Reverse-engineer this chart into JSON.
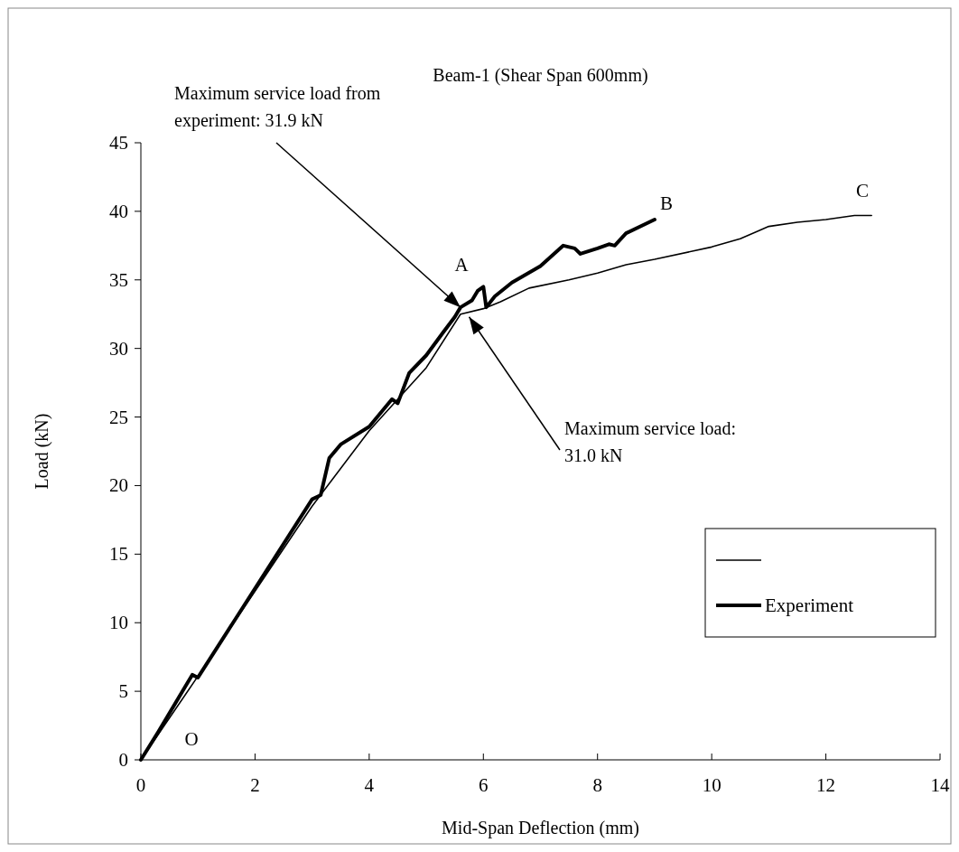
{
  "chart_data": {
    "type": "line",
    "title": "Beam-1 (Shear Span 600mm)",
    "xlabel": "Mid-Span Deflection (mm)",
    "ylabel": "Load (kN)",
    "xlim": [
      0,
      14
    ],
    "xticks": [
      0,
      2,
      4,
      6,
      8,
      10,
      12,
      14
    ],
    "ylim": [
      0,
      45
    ],
    "yticks": [
      0,
      5,
      10,
      15,
      20,
      25,
      30,
      35,
      40,
      45
    ],
    "grid": false,
    "legend": "bottom right",
    "marker": "none",
    "line_style": "solid",
    "series": [
      {
        "color": "#000000",
        "x": [
          0,
          1,
          2,
          3,
          4,
          5,
          5.6,
          6,
          6.3,
          6.8,
          7.5,
          8,
          8.5,
          9,
          10,
          10.5,
          11,
          11.5,
          12,
          12.5,
          12.8
        ],
        "values": [
          0,
          6.1,
          12.3,
          18.5,
          24,
          28.6,
          32.5,
          32.9,
          33.4,
          34.4,
          35,
          35.5,
          36.1,
          36.5,
          37.4,
          38,
          38.9,
          39.2,
          39.4,
          39.7,
          39.7
        ]
      },
      {
        "name": "Experiment",
        "color": "#000000",
        "x": [
          0,
          0.3,
          0.9,
          1,
          2,
          3,
          3.15,
          3.3,
          3.5,
          4,
          4.4,
          4.5,
          4.7,
          5,
          5.3,
          5.5,
          5.6,
          5.8,
          5.9,
          6,
          6.05,
          6.2,
          6.5,
          7,
          7.4,
          7.6,
          7.7,
          8,
          8.2,
          8.3,
          8.5,
          9
        ],
        "values": [
          0,
          2,
          6.2,
          6,
          12.5,
          19,
          19.3,
          22,
          23,
          24.3,
          26.3,
          26,
          28.2,
          29.5,
          31.2,
          32.3,
          33,
          33.5,
          34.2,
          34.5,
          33,
          33.8,
          34.8,
          36,
          37.5,
          37.3,
          36.9,
          37.3,
          37.6,
          37.5,
          38.4,
          39.4
        ]
      }
    ],
    "annotations": [
      {
        "text": "Maximum service load from experiment: 31.9 kN",
        "x": 5.6,
        "y": 33
      },
      {
        "text": "Maximum service load: 31.0 kN",
        "x": 5.75,
        "y": 32.3
      },
      "A",
      "B",
      "C",
      "O"
    ]
  }
}
